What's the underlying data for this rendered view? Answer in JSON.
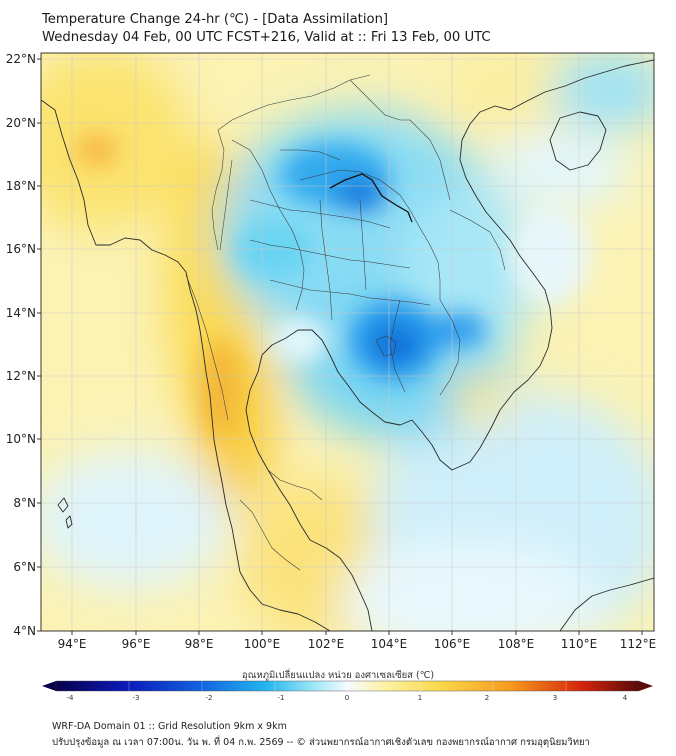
{
  "header": {
    "title_line1": "Temperature Change 24-hr (℃) - [Data Assimilation]",
    "title_line2": "Wednesday 04 Feb, 00 UTC FCST+216, Valid at :: Fri 13 Feb, 00 UTC"
  },
  "map": {
    "lat_labels": [
      "22°N",
      "20°N",
      "18°N",
      "16°N",
      "14°N",
      "12°N",
      "10°N",
      "8°N",
      "6°N",
      "4°N"
    ],
    "lon_labels": [
      "94°E",
      "96°E",
      "98°E",
      "100°E",
      "102°E",
      "104°E",
      "106°E",
      "108°E",
      "110°E",
      "112°E"
    ],
    "lat_range": [
      4,
      22
    ],
    "lon_range": [
      93,
      112.5
    ],
    "colors": {
      "warm_light": "#fdf6b0",
      "warm": "#fbe26a",
      "warm_strong": "#f5a623",
      "neutral": "#f7fbff",
      "cool_light": "#b9ecf7",
      "cool": "#5fd3f2",
      "cool_strong": "#1497e8",
      "cool_core": "#0a6ad6"
    }
  },
  "colorbar": {
    "title": "อุณหภูมิเปลี่ยนแปลง หน่วย องศาเซลเซียส (℃)",
    "ticks": [
      "-4",
      "-3",
      "-2",
      "-1",
      "0",
      "1",
      "2",
      "3",
      "4"
    ],
    "range": [
      -4,
      4
    ],
    "stops": [
      "#08004a",
      "#0a1ab8",
      "#1464e0",
      "#22b6ee",
      "#9be6f7",
      "#f4fbff",
      "#fdf3a8",
      "#fbd84a",
      "#f59a1e",
      "#d6260c",
      "#5a0a0a"
    ]
  },
  "footer": {
    "line1": "WRF-DA Domain 01 :: Grid Resolution 9km x 9km",
    "line2": "ปรับปรุงข้อมูล ณ เวลา 07:00น. วัน พ. ที่ 04 ก.พ. 2569 -- © ส่วนพยากรณ์อากาศเชิงตัวเลข กองพยากรณ์อากาศ กรมอุตุนิยมวิทยา"
  }
}
